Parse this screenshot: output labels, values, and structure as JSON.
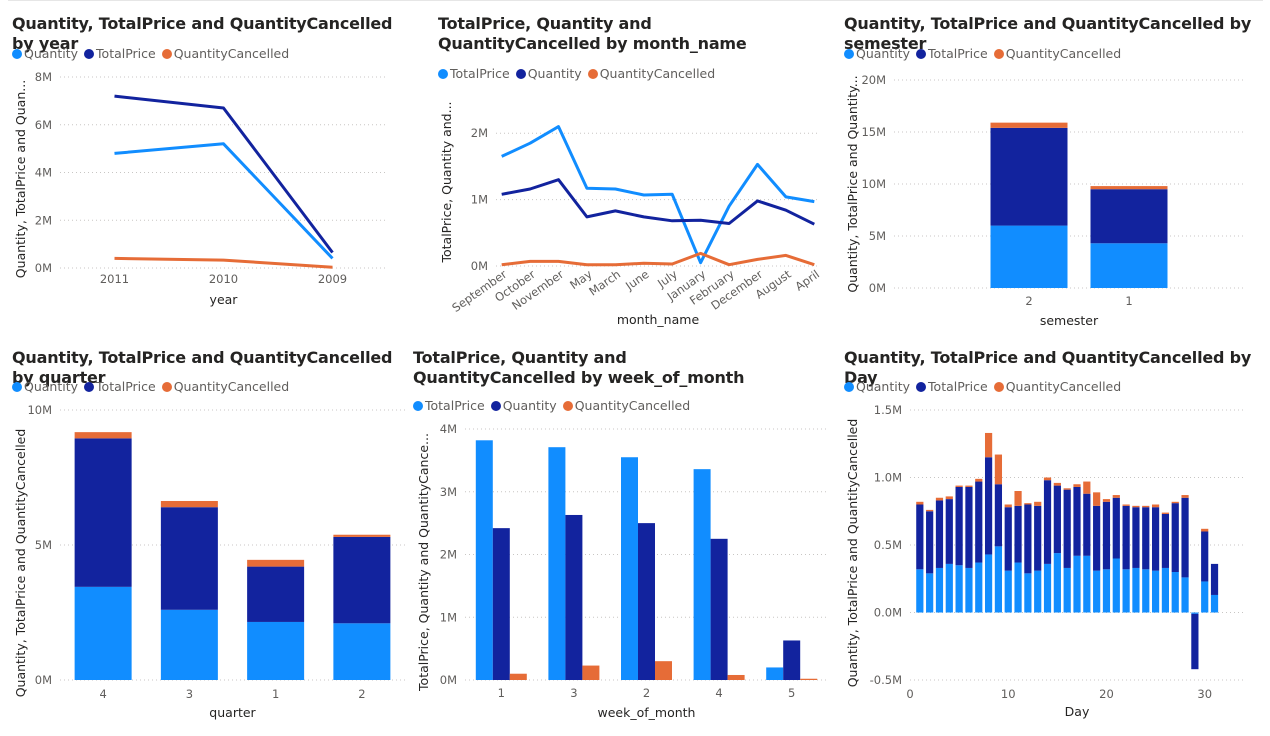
{
  "colors": {
    "light_blue": "#118dff",
    "dark_blue": "#12239e",
    "orange": "#e66c37"
  },
  "chart_data": [
    {
      "id": "c1",
      "type": "line",
      "title": "Quantity, TotalPrice and QuantityCancelled by year",
      "legend": [
        {
          "name": "Quantity",
          "color": "#118dff"
        },
        {
          "name": "TotalPrice",
          "color": "#12239e"
        },
        {
          "name": "QuantityCancelled",
          "color": "#e66c37"
        }
      ],
      "categories": [
        "2011",
        "2010",
        "2009"
      ],
      "series": [
        {
          "name": "Quantity",
          "color": "#118dff",
          "values": [
            4800000,
            5200000,
            400000
          ]
        },
        {
          "name": "TotalPrice",
          "color": "#12239e",
          "values": [
            7200000,
            6700000,
            650000
          ]
        },
        {
          "name": "QuantityCancelled",
          "color": "#e66c37",
          "values": [
            400000,
            330000,
            30000
          ]
        }
      ],
      "xlabel": "year",
      "ylabel": "Quantity, TotalPrice and Quan...",
      "ylim": [
        0,
        8000000
      ],
      "yticks": [
        0,
        2000000,
        4000000,
        6000000,
        8000000
      ],
      "ytick_labels": [
        "0M",
        "2M",
        "4M",
        "6M",
        "8M"
      ],
      "grid": true
    },
    {
      "id": "c2",
      "type": "line",
      "title": "TotalPrice, Quantity and QuantityCancelled by month_name",
      "legend": [
        {
          "name": "TotalPrice",
          "color": "#118dff"
        },
        {
          "name": "Quantity",
          "color": "#12239e"
        },
        {
          "name": "QuantityCancelled",
          "color": "#e66c37"
        }
      ],
      "categories": [
        "September",
        "October",
        "November",
        "May",
        "March",
        "June",
        "July",
        "January",
        "February",
        "December",
        "August",
        "April"
      ],
      "series": [
        {
          "name": "TotalPrice",
          "color": "#118dff",
          "values": [
            1650000,
            1850000,
            2100000,
            1170000,
            1160000,
            1070000,
            1080000,
            50000,
            900000,
            1530000,
            1040000,
            970000
          ]
        },
        {
          "name": "Quantity",
          "color": "#12239e",
          "values": [
            1080000,
            1160000,
            1300000,
            740000,
            830000,
            740000,
            680000,
            690000,
            640000,
            980000,
            840000,
            630000
          ]
        },
        {
          "name": "QuantityCancelled",
          "color": "#e66c37",
          "values": [
            20000,
            70000,
            70000,
            20000,
            20000,
            40000,
            30000,
            190000,
            20000,
            100000,
            160000,
            20000
          ]
        }
      ],
      "xlabel": "month_name",
      "ylabel": "TotalPrice, Quantity and...",
      "ylim": [
        0,
        2500000
      ],
      "yticks": [
        0,
        1000000,
        2000000
      ],
      "ytick_labels": [
        "0M",
        "1M",
        "2M"
      ],
      "grid": true
    },
    {
      "id": "c3",
      "type": "bar",
      "stacked": true,
      "title": "Quantity, TotalPrice and QuantityCancelled by semester",
      "legend": [
        {
          "name": "Quantity",
          "color": "#118dff"
        },
        {
          "name": "TotalPrice",
          "color": "#12239e"
        },
        {
          "name": "QuantityCancelled",
          "color": "#e66c37"
        }
      ],
      "categories": [
        "2",
        "1"
      ],
      "series": [
        {
          "name": "Quantity",
          "color": "#118dff",
          "values": [
            6000000,
            4300000
          ]
        },
        {
          "name": "TotalPrice",
          "color": "#12239e",
          "values": [
            9400000,
            5200000
          ]
        },
        {
          "name": "QuantityCancelled",
          "color": "#e66c37",
          "values": [
            500000,
            300000
          ]
        }
      ],
      "xlabel": "semester",
      "ylabel": "Quantity, TotalPrice and Quantity...",
      "ylim": [
        0,
        20000000
      ],
      "yticks": [
        0,
        5000000,
        10000000,
        15000000,
        20000000
      ],
      "ytick_labels": [
        "0M",
        "5M",
        "10M",
        "15M",
        "20M"
      ],
      "grid": true
    },
    {
      "id": "c4",
      "type": "bar",
      "stacked": true,
      "title": "Quantity, TotalPrice and QuantityCancelled by quarter",
      "legend": [
        {
          "name": "Quantity",
          "color": "#118dff"
        },
        {
          "name": "TotalPrice",
          "color": "#12239e"
        },
        {
          "name": "QuantityCancelled",
          "color": "#e66c37"
        }
      ],
      "categories": [
        "4",
        "3",
        "1",
        "2"
      ],
      "series": [
        {
          "name": "Quantity",
          "color": "#118dff",
          "values": [
            3450000,
            2600000,
            2150000,
            2100000
          ]
        },
        {
          "name": "TotalPrice",
          "color": "#12239e",
          "values": [
            5500000,
            3800000,
            2050000,
            3200000
          ]
        },
        {
          "name": "QuantityCancelled",
          "color": "#e66c37",
          "values": [
            230000,
            230000,
            250000,
            80000
          ]
        }
      ],
      "xlabel": "quarter",
      "ylabel": "Quantity, TotalPrice and QuantityCancelled",
      "ylim": [
        0,
        10000000
      ],
      "yticks": [
        0,
        5000000,
        10000000
      ],
      "ytick_labels": [
        "0M",
        "5M",
        "10M"
      ],
      "grid": true
    },
    {
      "id": "c5",
      "type": "bar",
      "stacked": false,
      "title": "TotalPrice, Quantity and QuantityCancelled by week_of_month",
      "legend": [
        {
          "name": "TotalPrice",
          "color": "#118dff"
        },
        {
          "name": "Quantity",
          "color": "#12239e"
        },
        {
          "name": "QuantityCancelled",
          "color": "#e66c37"
        }
      ],
      "categories": [
        "1",
        "3",
        "2",
        "4",
        "5"
      ],
      "series": [
        {
          "name": "TotalPrice",
          "color": "#118dff",
          "values": [
            3820000,
            3710000,
            3550000,
            3360000,
            200000
          ]
        },
        {
          "name": "Quantity",
          "color": "#12239e",
          "values": [
            2420000,
            2630000,
            2500000,
            2250000,
            630000
          ]
        },
        {
          "name": "QuantityCancelled",
          "color": "#e66c37",
          "values": [
            100000,
            230000,
            300000,
            80000,
            20000
          ]
        }
      ],
      "xlabel": "week_of_month",
      "ylabel": "TotalPrice, Quantity and QuantityCance...",
      "ylim": [
        0,
        4000000
      ],
      "yticks": [
        0,
        1000000,
        2000000,
        3000000,
        4000000
      ],
      "ytick_labels": [
        "0M",
        "1M",
        "2M",
        "3M",
        "4M"
      ],
      "grid": true
    },
    {
      "id": "c6",
      "type": "bar",
      "stacked": true,
      "title": "Quantity, TotalPrice and QuantityCancelled by Day",
      "legend": [
        {
          "name": "Quantity",
          "color": "#118dff"
        },
        {
          "name": "TotalPrice",
          "color": "#12239e"
        },
        {
          "name": "QuantityCancelled",
          "color": "#e66c37"
        }
      ],
      "x": [
        1,
        2,
        3,
        4,
        5,
        6,
        7,
        8,
        9,
        10,
        11,
        12,
        13,
        14,
        15,
        16,
        17,
        18,
        19,
        20,
        21,
        22,
        23,
        24,
        25,
        26,
        27,
        28,
        29,
        30,
        31
      ],
      "series": [
        {
          "name": "Quantity",
          "color": "#118dff",
          "values": [
            320000,
            290000,
            330000,
            360000,
            350000,
            330000,
            370000,
            430000,
            490000,
            310000,
            370000,
            290000,
            310000,
            360000,
            440000,
            330000,
            420000,
            420000,
            310000,
            320000,
            400000,
            320000,
            330000,
            320000,
            310000,
            330000,
            300000,
            260000,
            -10000,
            230000,
            130000
          ]
        },
        {
          "name": "TotalPrice",
          "color": "#12239e",
          "values": [
            480000,
            460000,
            500000,
            480000,
            580000,
            600000,
            600000,
            720000,
            460000,
            470000,
            420000,
            510000,
            480000,
            620000,
            500000,
            580000,
            510000,
            460000,
            480000,
            500000,
            450000,
            470000,
            450000,
            460000,
            470000,
            400000,
            510000,
            590000,
            -410000,
            370000,
            230000
          ]
        },
        {
          "name": "QuantityCancelled",
          "color": "#e66c37",
          "values": [
            20000,
            10000,
            20000,
            20000,
            10000,
            10000,
            20000,
            180000,
            220000,
            20000,
            110000,
            10000,
            30000,
            20000,
            20000,
            10000,
            20000,
            90000,
            100000,
            20000,
            20000,
            10000,
            10000,
            10000,
            20000,
            10000,
            10000,
            20000,
            0,
            20000,
            0
          ]
        }
      ],
      "xlabel": "Day",
      "ylabel": "Quantity, TotalPrice and QuantityCancelled",
      "ylim": [
        -500000,
        1500000
      ],
      "yticks": [
        -500000,
        0,
        500000,
        1000000,
        1500000
      ],
      "ytick_labels": [
        "-0.5M",
        "0.0M",
        "0.5M",
        "1.0M",
        "1.5M"
      ],
      "xticks": [
        0,
        10,
        20,
        30
      ],
      "xtick_labels": [
        "0",
        "10",
        "20",
        "30"
      ],
      "grid": true
    }
  ]
}
